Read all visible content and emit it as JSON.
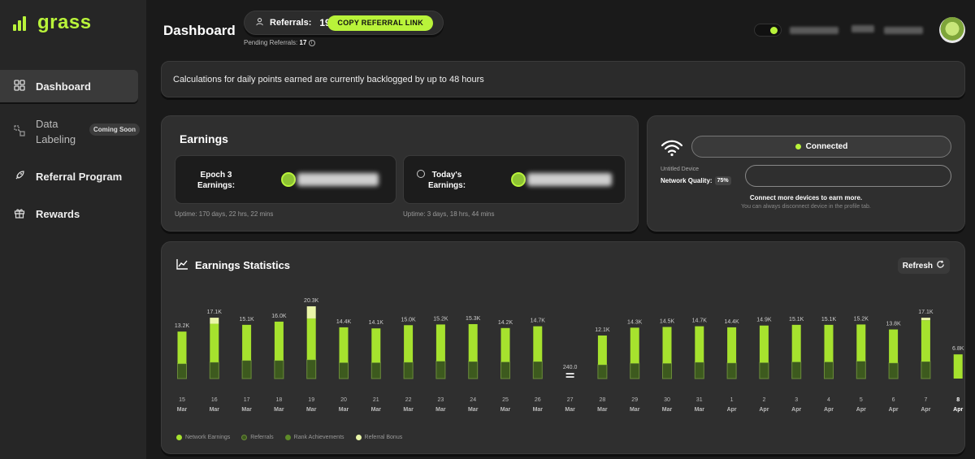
{
  "app": {
    "name": "grass"
  },
  "sidebar": {
    "items": [
      {
        "label": "Dashboard",
        "icon": "grid-icon",
        "active": true
      },
      {
        "label": "Data Labeling",
        "icon": "data-labeling-icon",
        "badge": "Coming Soon"
      },
      {
        "label": "Referral Program",
        "icon": "rocket-icon"
      },
      {
        "label": "Rewards",
        "icon": "gift-icon"
      }
    ]
  },
  "header": {
    "title": "Dashboard",
    "referrals_label": "Referrals:",
    "referrals_count": "19",
    "copy_button": "COPY REFERRAL LINK",
    "pending_label": "Pending Referrals:",
    "pending_count": "17"
  },
  "notice": {
    "text": "Calculations for daily points earned are currently backlogged by up to 48 hours"
  },
  "earnings": {
    "title": "Earnings",
    "epoch_label": "Epoch 3 Earnings:",
    "epoch_uptime": "Uptime: 170 days, 22 hrs, 22 mins",
    "today_label": "Today's Earnings:",
    "today_uptime": "Uptime: 3 days, 18 hrs, 44 mins"
  },
  "connection": {
    "status": "Connected",
    "device_name": "Untitled Device",
    "network_quality_label": "Network Quality:",
    "network_quality_value": "75%",
    "connect_more": "Connect more devices to earn more.",
    "disconnect_note": "You can always disconnect device in the profile tab."
  },
  "stats": {
    "title": "Earnings Statistics",
    "refresh_label": "Refresh",
    "legend": [
      {
        "label": "Network Earnings",
        "color": "#a6e22e"
      },
      {
        "label": "Referrals",
        "color": "#3d5a1e"
      },
      {
        "label": "Rank Achievements",
        "color": "#5d8a28"
      },
      {
        "label": "Referral Bonus",
        "color": "#e9f5a8"
      }
    ]
  },
  "colors": {
    "accent": "#b9f33a",
    "network": "#a6e22e",
    "referrals": "#3d5a1e",
    "bonus": "#e9f5a8"
  },
  "chart_data": {
    "type": "bar",
    "stacked": true,
    "categories": [
      "15 Mar",
      "16 Mar",
      "17 Mar",
      "18 Mar",
      "19 Mar",
      "20 Mar",
      "21 Mar",
      "22 Mar",
      "23 Mar",
      "24 Mar",
      "25 Mar",
      "26 Mar",
      "27 Mar",
      "28 Mar",
      "29 Mar",
      "30 Mar",
      "31 Mar",
      "1 Apr",
      "2 Apr",
      "3 Apr",
      "4 Apr",
      "5 Apr",
      "6 Apr",
      "7 Apr",
      "8 Apr"
    ],
    "day_labels": [
      "15",
      "16",
      "17",
      "18",
      "19",
      "20",
      "21",
      "22",
      "23",
      "24",
      "25",
      "26",
      "27",
      "28",
      "29",
      "30",
      "31",
      "1",
      "2",
      "3",
      "4",
      "5",
      "6",
      "7",
      "8"
    ],
    "month_labels": [
      "Mar",
      "Mar",
      "Mar",
      "Mar",
      "Mar",
      "Mar",
      "Mar",
      "Mar",
      "Mar",
      "Mar",
      "Mar",
      "Mar",
      "Mar",
      "Mar",
      "Mar",
      "Mar",
      "Mar",
      "Apr",
      "Apr",
      "Apr",
      "Apr",
      "Apr",
      "Apr",
      "Apr",
      "Apr"
    ],
    "total_labels": [
      "13.2K",
      "17.1K",
      "15.1K",
      "16.0K",
      "20.3K",
      "14.4K",
      "14.1K",
      "15.0K",
      "15.2K",
      "15.3K",
      "14.2K",
      "14.7K",
      "240.0",
      "12.1K",
      "14.3K",
      "14.5K",
      "14.7K",
      "14.4K",
      "14.9K",
      "15.1K",
      "15.1K",
      "15.2K",
      "13.8K",
      "17.1K",
      "6.8K"
    ],
    "totals": [
      13200,
      17100,
      15100,
      16000,
      20300,
      14400,
      14100,
      15000,
      15200,
      15300,
      14200,
      14700,
      240,
      12100,
      14300,
      14500,
      14700,
      14400,
      14900,
      15100,
      15100,
      15200,
      13800,
      17100,
      6800
    ],
    "series": [
      {
        "name": "Network Earnings",
        "values": [
          9000,
          10800,
          10000,
          10900,
          11600,
          9900,
          9600,
          10400,
          10300,
          10500,
          9500,
          9900,
          120,
          8200,
          10000,
          10200,
          10100,
          10000,
          10400,
          10400,
          10400,
          10300,
          9400,
          11600,
          6800
        ]
      },
      {
        "name": "Referrals",
        "values": [
          4200,
          4600,
          5100,
          5100,
          5300,
          4500,
          4500,
          4600,
          4900,
          4800,
          4700,
          4800,
          120,
          3900,
          4300,
          4300,
          4600,
          4400,
          4500,
          4700,
          4700,
          4900,
          4400,
          4800,
          0
        ]
      },
      {
        "name": "Rank Achievements",
        "values": [
          0,
          0,
          0,
          0,
          0,
          0,
          0,
          0,
          0,
          0,
          0,
          0,
          0,
          0,
          0,
          0,
          0,
          0,
          0,
          0,
          0,
          0,
          0,
          0,
          0
        ]
      },
      {
        "name": "Referral Bonus",
        "values": [
          0,
          1700,
          0,
          0,
          3400,
          0,
          0,
          0,
          0,
          0,
          0,
          0,
          0,
          0,
          0,
          0,
          0,
          0,
          0,
          0,
          0,
          0,
          0,
          700,
          0
        ]
      }
    ],
    "highlighted_category": "8 Apr",
    "ylim": [
      0,
      21000
    ],
    "grid": false,
    "legend_position": "bottom-left"
  }
}
